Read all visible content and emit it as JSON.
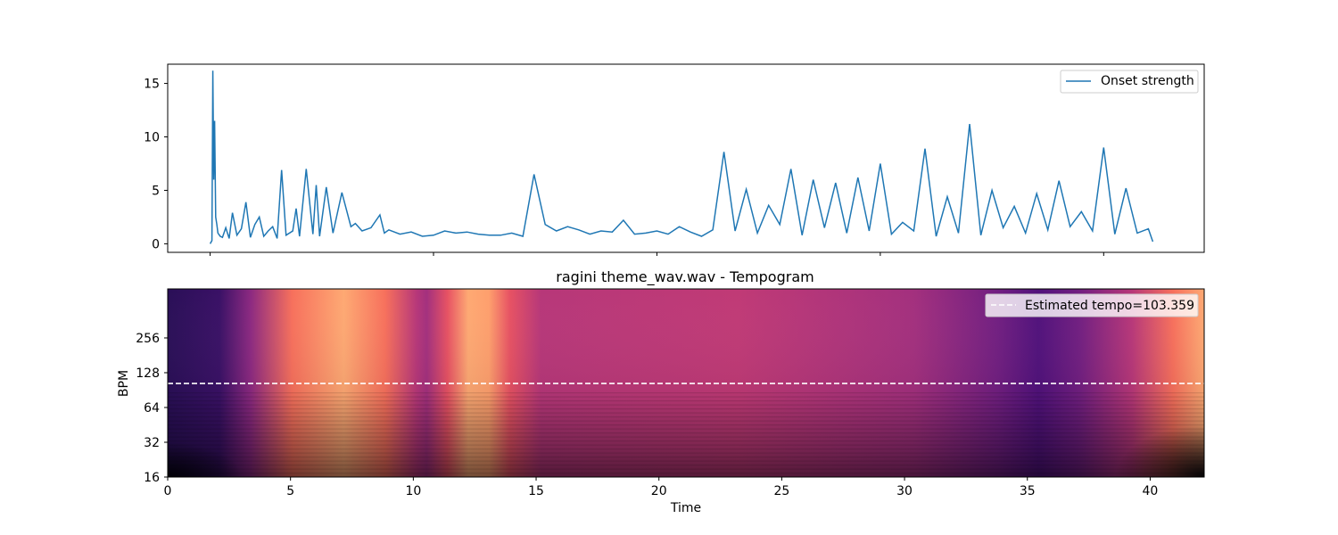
{
  "chart_data": [
    {
      "type": "line",
      "title": "",
      "xlabel": "",
      "ylabel": "",
      "xlim": [
        -1.9,
        44.5
      ],
      "ylim": [
        -0.8,
        16.8
      ],
      "x_ticks": [
        0,
        10,
        20,
        30,
        40
      ],
      "y_ticks": [
        0,
        5,
        10,
        15
      ],
      "y_tick_labels": [
        "0",
        "5",
        "10",
        "15"
      ],
      "grid": false,
      "legend_position": "top-right",
      "series": [
        {
          "name": "Onset strength",
          "color": "#1f77b4",
          "x": [
            0.0,
            0.08,
            0.12,
            0.16,
            0.2,
            0.25,
            0.3,
            0.35,
            0.45,
            0.55,
            0.7,
            0.85,
            1.0,
            1.2,
            1.4,
            1.6,
            1.8,
            2.0,
            2.2,
            2.4,
            2.6,
            2.8,
            3.0,
            3.2,
            3.4,
            3.7,
            3.85,
            4.0,
            4.3,
            4.6,
            4.75,
            4.9,
            5.2,
            5.5,
            5.9,
            6.3,
            6.5,
            6.8,
            7.2,
            7.6,
            7.8,
            8.0,
            8.5,
            9.0,
            9.5,
            10.0,
            10.5,
            11.0,
            11.5,
            12.0,
            12.5,
            13.0,
            13.5,
            14.0,
            14.5,
            15.0,
            15.5,
            16.0,
            16.5,
            17.0,
            17.5,
            18.0,
            18.5,
            19.0,
            19.5,
            20.0,
            20.5,
            21.0,
            21.5,
            22.0,
            22.5,
            23.0,
            23.5,
            24.0,
            24.5,
            25.0,
            25.5,
            26.0,
            26.5,
            27.0,
            27.5,
            28.0,
            28.5,
            29.0,
            29.5,
            30.0,
            30.5,
            31.0,
            31.5,
            32.0,
            32.5,
            33.0,
            33.5,
            34.0,
            34.5,
            35.0,
            35.5,
            36.0,
            36.5,
            37.0,
            37.5,
            38.0,
            38.5,
            39.0,
            39.5,
            40.0,
            40.5,
            41.0,
            41.5,
            42.0,
            42.2
          ],
          "y": [
            0.0,
            0.3,
            16.2,
            6.0,
            11.5,
            2.5,
            1.8,
            1.0,
            0.7,
            0.6,
            1.5,
            0.5,
            2.9,
            0.8,
            1.4,
            3.9,
            0.6,
            1.8,
            2.5,
            0.7,
            1.2,
            1.6,
            0.5,
            6.9,
            0.8,
            1.2,
            3.3,
            0.7,
            7.0,
            0.9,
            5.5,
            0.7,
            5.3,
            1.0,
            4.8,
            1.6,
            1.9,
            1.2,
            1.5,
            2.7,
            1.0,
            1.3,
            0.9,
            1.1,
            0.7,
            0.8,
            1.2,
            1.0,
            1.1,
            0.9,
            0.8,
            0.8,
            1.0,
            0.7,
            6.5,
            1.8,
            1.2,
            1.6,
            1.3,
            0.9,
            1.2,
            1.1,
            2.2,
            0.9,
            1.0,
            1.2,
            0.9,
            1.6,
            1.1,
            0.7,
            1.3,
            8.6,
            1.2,
            5.1,
            1.0,
            3.6,
            1.8,
            7.0,
            0.8,
            6.0,
            1.5,
            5.7,
            1.0,
            6.2,
            1.2,
            7.5,
            0.9,
            2.0,
            1.2,
            8.9,
            0.7,
            4.4,
            1.0,
            11.2,
            0.8,
            5.0,
            1.5,
            3.5,
            1.0,
            4.7,
            1.3,
            5.9,
            1.6,
            3.0,
            1.2,
            9.0,
            0.9,
            5.2,
            1.0,
            1.4,
            0.2
          ]
        }
      ]
    },
    {
      "type": "heatmap",
      "title": "ragini theme_wav.wav - Tempogram",
      "xlabel": "Time",
      "ylabel": "BPM",
      "xlim": [
        0,
        42.2
      ],
      "ylim": [
        16,
        680
      ],
      "y_scale": "log2",
      "x_ticks": [
        0,
        5,
        10,
        15,
        20,
        25,
        30,
        35,
        40
      ],
      "x_tick_labels": [
        "0",
        "5",
        "10",
        "15",
        "20",
        "25",
        "30",
        "35",
        "40"
      ],
      "y_ticks": [
        16,
        32,
        64,
        128,
        256
      ],
      "y_tick_labels": [
        "16",
        "32",
        "64",
        "128",
        "256"
      ],
      "colormap": "magma",
      "estimated_tempo": 103.359,
      "tempo_line_color": "#ffffff",
      "legend_position": "top-right",
      "legend_label": "Estimated tempo=103.359"
    }
  ]
}
